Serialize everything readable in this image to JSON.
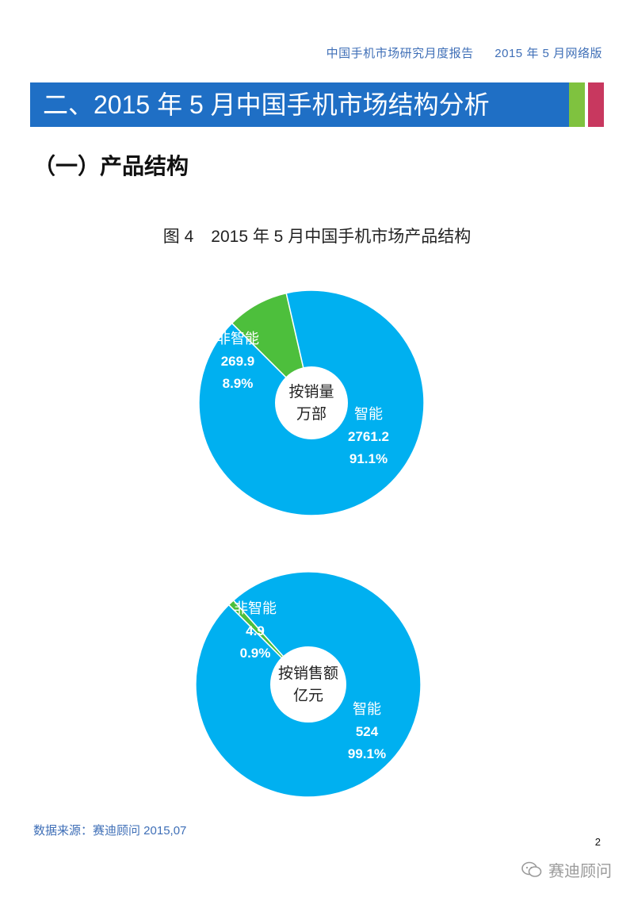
{
  "header": {
    "report_title": "中国手机市场研究月度报告",
    "edition": "2015 年 5 月网络版"
  },
  "section": {
    "title": "二、2015 年 5 月中国手机市场结构分析",
    "accent_colors": [
      "#1f6fc5",
      "#7fc23f",
      "#c8385f"
    ]
  },
  "subsection": {
    "title": "（一）产品结构"
  },
  "figure": {
    "label": "图 4",
    "title": "2015 年 5 月中国手机市场产品结构"
  },
  "chart_data": [
    {
      "type": "pie",
      "center_label": [
        "按销量",
        "万部"
      ],
      "slices": [
        {
          "label": "非智能",
          "value": 269.9,
          "percent": "8.9%",
          "color": "#4dbf3c"
        },
        {
          "label": "智能",
          "value": 2761.2,
          "percent": "91.1%",
          "color": "#00b0f0"
        }
      ]
    },
    {
      "type": "pie",
      "center_label": [
        "按销售额",
        "亿元"
      ],
      "slices": [
        {
          "label": "非智能",
          "value": 4.9,
          "percent": "0.9%",
          "color": "#4dbf3c"
        },
        {
          "label": "智能",
          "value": 524.0,
          "percent": "99.1%",
          "color": "#00b0f0"
        }
      ]
    }
  ],
  "footer": {
    "source": "数据来源：赛迪顾问 2015,07",
    "page_number": "2",
    "watermark": "赛迪顾问",
    "watermark_icon": "wechat-icon"
  }
}
